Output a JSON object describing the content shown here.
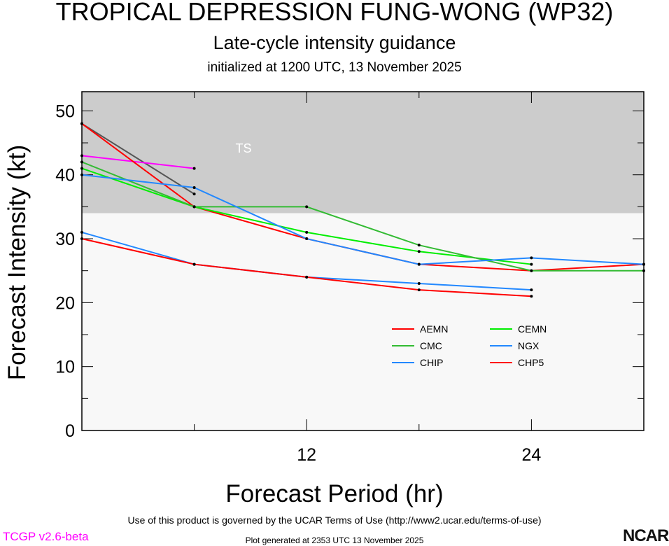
{
  "header": {
    "title": "TROPICAL DEPRESSION FUNG-WONG (WP32)",
    "subtitle": "Late-cycle intensity guidance",
    "initialized": "initialized at 1200 UTC, 13 November 2025"
  },
  "footer": {
    "terms": "Use of this product is governed by the UCAR Terms of Use (http://www2.ucar.edu/terms-of-use)",
    "generated": "Plot generated at 2353 UTC   13 November 2025",
    "version": "TCGP v2.6-beta",
    "logo": "NCAR"
  },
  "chart_data": {
    "type": "line",
    "xlabel": "Forecast Period (hr)",
    "ylabel": "Forecast Intensity (kt)",
    "xlim": [
      0,
      30
    ],
    "ylim": [
      0,
      53
    ],
    "xticks": [
      12,
      24
    ],
    "yticks": [
      0,
      10,
      20,
      30,
      40,
      50
    ],
    "bands": [
      {
        "label": "TS",
        "from": 34,
        "to": 53,
        "color": "#cccccc"
      }
    ],
    "series": [
      {
        "name": "",
        "color": "#555555",
        "x": [
          0,
          6
        ],
        "y": [
          48,
          37
        ]
      },
      {
        "name": "",
        "color": "#ff00ff",
        "x": [
          0,
          6
        ],
        "y": [
          43,
          41
        ]
      },
      {
        "name": "AEMN",
        "color": "#ff0000",
        "x": [
          0,
          6,
          12,
          18,
          24,
          30
        ],
        "y": [
          48,
          35,
          30,
          26,
          25,
          26
        ]
      },
      {
        "name": "CEMN",
        "color": "#00ee00",
        "x": [
          0,
          6,
          12,
          18,
          24
        ],
        "y": [
          41,
          35,
          31,
          28,
          26
        ]
      },
      {
        "name": "CMC",
        "color": "#33bb33",
        "x": [
          0,
          6,
          12,
          18,
          24,
          30
        ],
        "y": [
          42,
          35,
          35,
          29,
          25,
          25
        ]
      },
      {
        "name": "NGX",
        "color": "#2288ff",
        "x": [
          0,
          6,
          12,
          18,
          24,
          30
        ],
        "y": [
          40,
          38,
          30,
          26,
          27,
          26
        ]
      },
      {
        "name": "CHIP",
        "color": "#2288ff",
        "x": [
          0,
          6,
          12,
          18,
          24
        ],
        "y": [
          31,
          26,
          24,
          23,
          22
        ]
      },
      {
        "name": "CHP5",
        "color": "#ff0000",
        "x": [
          0,
          6,
          12,
          18,
          24
        ],
        "y": [
          30,
          26,
          24,
          22,
          21
        ]
      }
    ]
  }
}
